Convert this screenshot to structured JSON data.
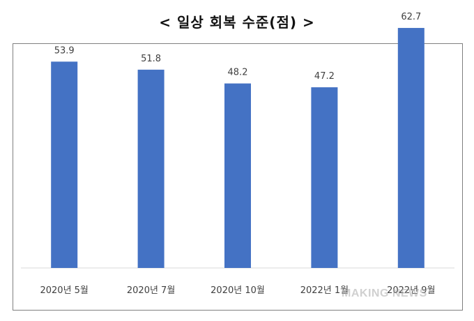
{
  "title": "< 일상 회복 수준(점) >",
  "watermark": "MAKING NEWS",
  "chart_data": {
    "type": "bar",
    "categories": [
      "2020년 5월",
      "2020년 7월",
      "2020년 10월",
      "2022년 1월",
      "2022년 9월"
    ],
    "values": [
      53.9,
      51.8,
      48.2,
      47.2,
      62.7
    ],
    "title": "< 일상 회복 수준(점) >",
    "xlabel": "",
    "ylabel": "",
    "ylim": [
      0,
      70
    ],
    "bar_color": "#4472c4",
    "grid": false,
    "data_labels": true
  }
}
